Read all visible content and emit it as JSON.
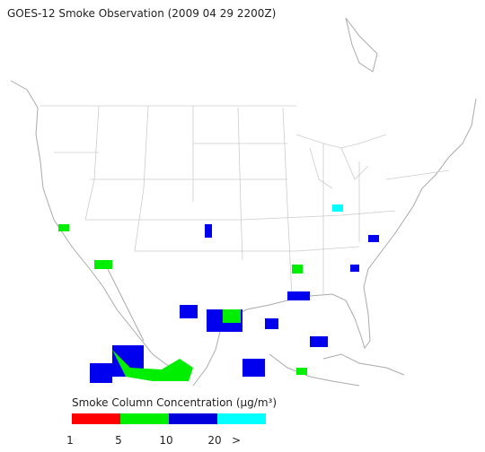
{
  "title": "GOES-12 Smoke Observation (2009 04 29  2200Z)",
  "legend": {
    "title": "Smoke Column Concentration (μg/m³)",
    "tick_labels": [
      "1",
      "5",
      "10",
      "20",
      ">"
    ]
  }
}
